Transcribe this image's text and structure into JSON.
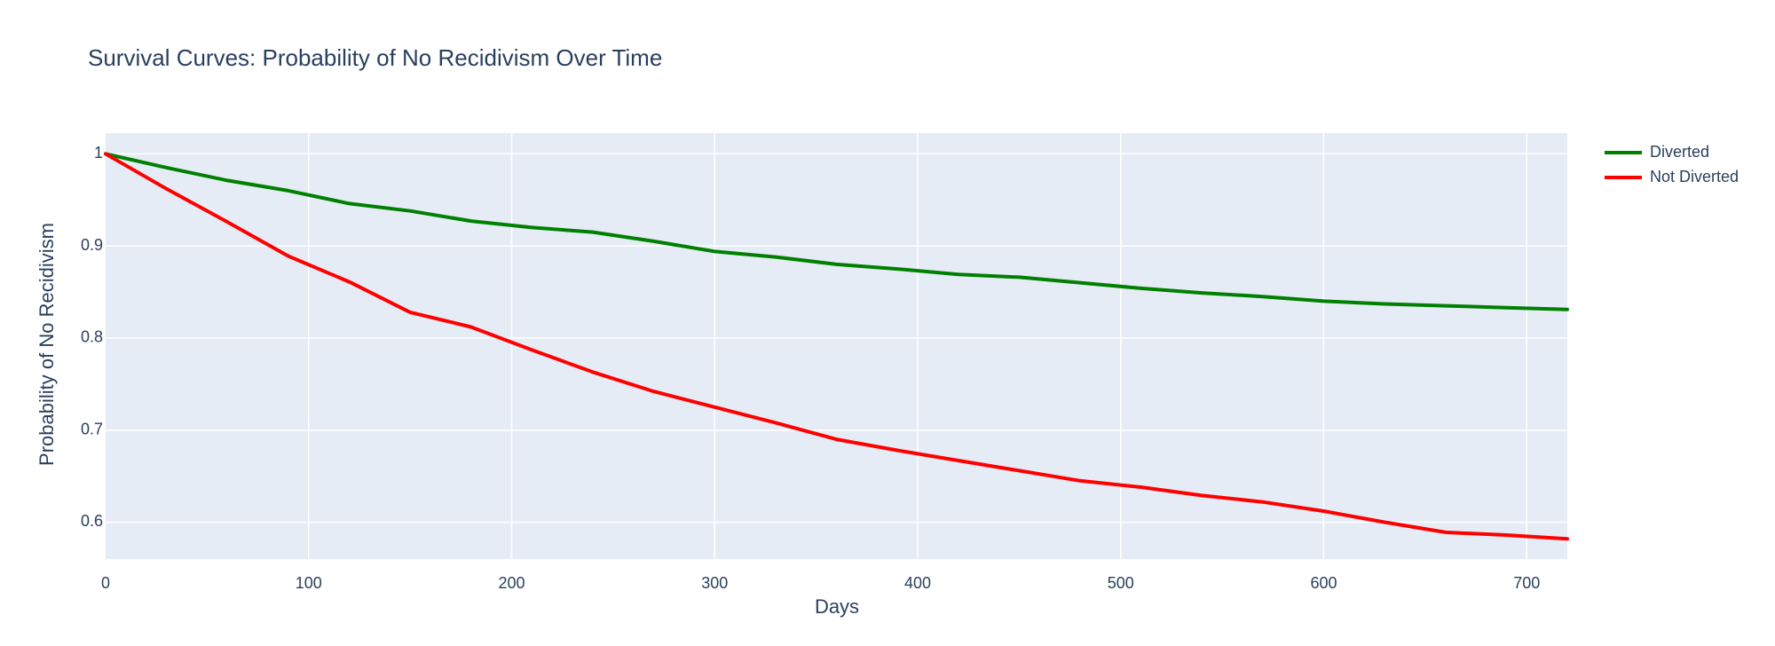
{
  "chart_data": {
    "type": "line",
    "title": "Survival Curves: Probability of No Recidivism Over Time",
    "xlabel": "Days",
    "ylabel": "Probability of No Recidivism",
    "xlim": [
      0,
      720
    ],
    "ylim": [
      0.56,
      1.0225
    ],
    "x_ticks": [
      0,
      100,
      200,
      300,
      400,
      500,
      600,
      700
    ],
    "x_tick_labels": [
      "0",
      "100",
      "200",
      "300",
      "400",
      "500",
      "600",
      "700"
    ],
    "y_ticks": [
      0.6,
      0.7,
      0.8,
      0.9,
      1.0
    ],
    "y_tick_labels": [
      "0.6",
      "0.7",
      "0.8",
      "0.9",
      "1"
    ],
    "grid": true,
    "legend_position": "top-right",
    "x": [
      0,
      30,
      60,
      90,
      120,
      150,
      180,
      210,
      240,
      270,
      300,
      330,
      360,
      390,
      420,
      450,
      480,
      510,
      540,
      570,
      600,
      630,
      660,
      690,
      720
    ],
    "series": [
      {
        "name": "Diverted",
        "color": "#008000",
        "values": [
          1.0,
          0.985,
          0.971,
          0.96,
          0.946,
          0.938,
          0.927,
          0.92,
          0.915,
          0.905,
          0.894,
          0.888,
          0.88,
          0.875,
          0.869,
          0.866,
          0.86,
          0.854,
          0.849,
          0.845,
          0.84,
          0.837,
          0.835,
          0.833,
          0.831
        ]
      },
      {
        "name": "Not Diverted",
        "color": "#ff0000",
        "values": [
          1.0,
          0.962,
          0.926,
          0.889,
          0.861,
          0.828,
          0.812,
          0.787,
          0.763,
          0.742,
          0.725,
          0.708,
          0.69,
          0.678,
          0.667,
          0.656,
          0.645,
          0.638,
          0.629,
          0.622,
          0.612,
          0.6,
          0.589,
          0.586,
          0.582
        ]
      }
    ]
  }
}
